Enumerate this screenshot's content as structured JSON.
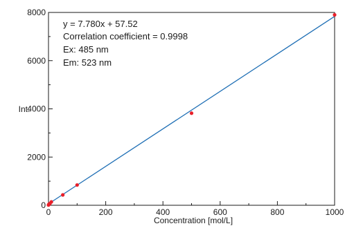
{
  "chart_data": {
    "type": "scatter",
    "title": "",
    "xlabel": "Concentration [mol/L]",
    "ylabel": "Int.",
    "xlim": [
      0,
      1000
    ],
    "ylim": [
      0,
      8000
    ],
    "x_major_ticks": [
      0,
      200,
      400,
      600,
      800,
      1000
    ],
    "y_major_ticks": [
      0,
      2000,
      4000,
      6000,
      8000
    ],
    "x_minor_ticks": [
      100,
      300,
      500,
      700,
      900
    ],
    "y_minor_ticks": [
      1000,
      3000,
      5000,
      7000
    ],
    "grid": false,
    "legend": "none",
    "series": [
      {
        "points": [
          {
            "x": 0,
            "y": 10
          },
          {
            "x": 1,
            "y": 30
          },
          {
            "x": 2,
            "y": 50
          },
          {
            "x": 5,
            "y": 70
          },
          {
            "x": 10,
            "y": 140
          },
          {
            "x": 50,
            "y": 430
          },
          {
            "x": 100,
            "y": 840
          },
          {
            "x": 500,
            "y": 3820
          },
          {
            "x": 1000,
            "y": 7900
          }
        ],
        "marker_color": "#e8202a"
      }
    ],
    "fit_line": {
      "slope": 7.78,
      "intercept": 57.52,
      "x_range": [
        0,
        1000
      ],
      "color": "#1f6fb5"
    },
    "annotations": [
      "y = 7.780x + 57.52",
      "Correlation coefficient = 0.9998",
      "Ex: 485 nm",
      "Em: 523 nm"
    ]
  }
}
